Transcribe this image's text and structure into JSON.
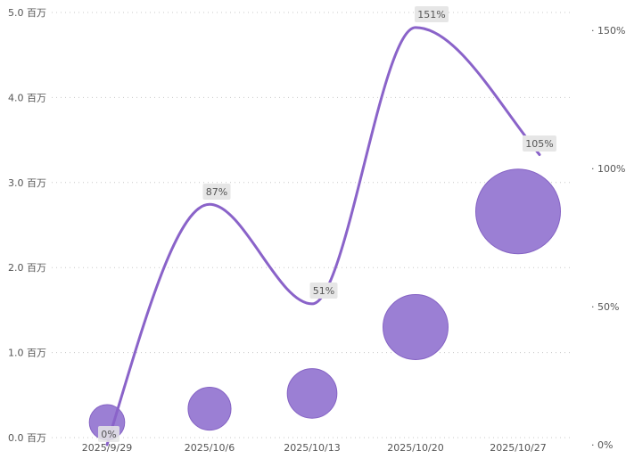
{
  "chart_data": {
    "type": "bubble+line",
    "title": "",
    "xlabel": "",
    "ylabel": "",
    "categories": [
      "2025/9/29",
      "2025/10/6",
      "2025/10/13",
      "2025/10/20",
      "2025/10/27"
    ],
    "y_left": {
      "min": 0,
      "max": 5000000,
      "ticks": [
        {
          "value": 0,
          "label": "0.0 百万"
        },
        {
          "value": 1000000,
          "label": "1.0 百万"
        },
        {
          "value": 2000000,
          "label": "2.0 百万"
        },
        {
          "value": 3000000,
          "label": "3.0 百万"
        },
        {
          "value": 4000000,
          "label": "4.0 百万"
        },
        {
          "value": 5000000,
          "label": "5.0 百万"
        }
      ]
    },
    "y_right": {
      "min": 0,
      "max": 1.55,
      "ticks": [
        {
          "value": 0,
          "label": "0%"
        },
        {
          "value": 0.5,
          "label": "50%"
        },
        {
          "value": 1.0,
          "label": "100%"
        },
        {
          "value": 1.5,
          "label": "150%"
        }
      ]
    },
    "bubble_series": {
      "name": "",
      "color": "#9b7fd4",
      "stroke": "#8563c4",
      "values": [
        180000,
        340000,
        520000,
        1300000,
        2660000
      ],
      "sizes": [
        0.03,
        0.09,
        0.17,
        0.45,
        1.0
      ]
    },
    "line_series": {
      "name": "",
      "color": "#8a63c9",
      "values": [
        0,
        0.87,
        0.51,
        1.51,
        1.05
      ],
      "labels": [
        "0%",
        "87%",
        "51%",
        "151%",
        "105%"
      ]
    },
    "grid": true,
    "legend": "none"
  }
}
